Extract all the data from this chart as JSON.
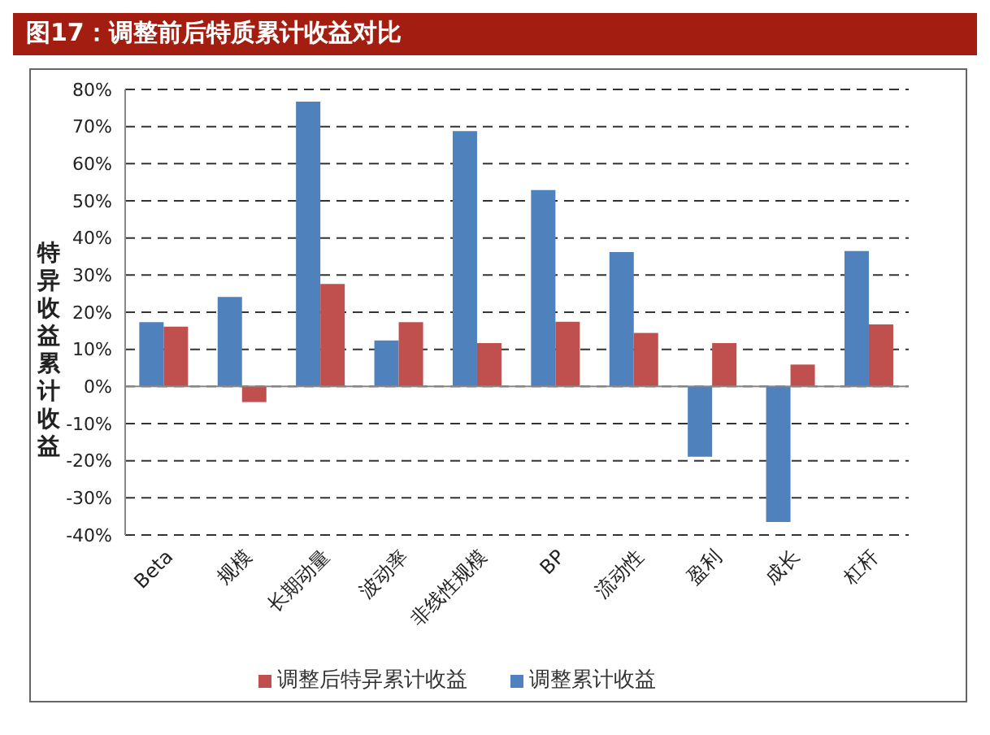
{
  "chart_data": {
    "type": "bar",
    "title": "图17：调整前后特质累计收益对比",
    "ylabel": "特异收益累计收益",
    "categories": [
      "Beta",
      "规模",
      "长期动量",
      "波动率",
      "非线性规模",
      "BP",
      "流动性",
      "盈利",
      "成长",
      "杠杆"
    ],
    "series": [
      {
        "name": "调整累计收益",
        "color": "#4f81bd",
        "values": [
          17.3,
          24.1,
          76.7,
          12.4,
          68.8,
          52.9,
          36.2,
          -18.9,
          -36.5,
          36.5
        ]
      },
      {
        "name": "调整后特异累计收益",
        "color": "#c0504d",
        "values": [
          16.1,
          -4.2,
          27.6,
          17.3,
          11.7,
          17.4,
          14.4,
          11.7,
          5.9,
          16.7
        ]
      }
    ],
    "ylim": [
      -40,
      80
    ],
    "yticks": [
      {
        "value": -40,
        "label": "-40%"
      },
      {
        "value": -30,
        "label": "-30%"
      },
      {
        "value": -20,
        "label": "-20%"
      },
      {
        "value": -10,
        "label": "-10%"
      },
      {
        "value": 0,
        "label": "0%"
      },
      {
        "value": 10,
        "label": "10%"
      },
      {
        "value": 20,
        "label": "20%"
      },
      {
        "value": 30,
        "label": "30%"
      },
      {
        "value": 40,
        "label": "40%"
      },
      {
        "value": 50,
        "label": "50%"
      },
      {
        "value": 60,
        "label": "60%"
      },
      {
        "value": 70,
        "label": "70%"
      },
      {
        "value": 80,
        "label": "80%"
      }
    ],
    "grid": "y",
    "legend": "bottom"
  }
}
